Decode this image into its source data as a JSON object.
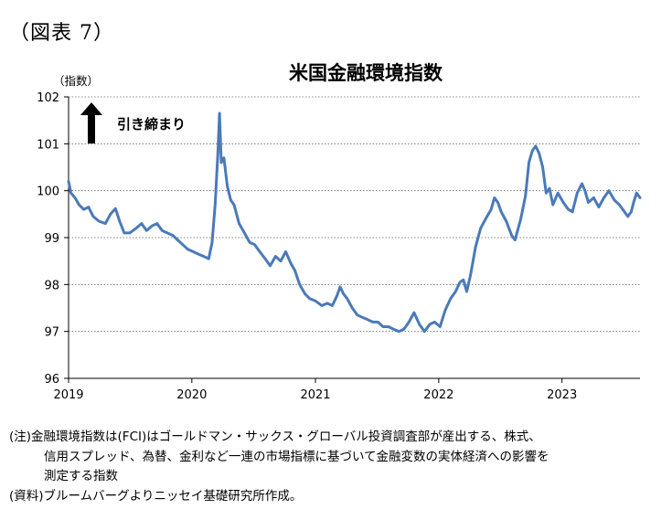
{
  "figure_label": "（図表 7）",
  "notes": {
    "note_line1": "(注)金融環境指数は(FCI)はゴールドマン・サックス・グローバル投資調査部が産出する、株式、",
    "note_line2": "信用スプレッド、為替、金利など一連の市場指標に基づいて金融変数の実体経済への影響を",
    "note_line3": "測定する指数",
    "source": "(資料)ブルームバーグよりニッセイ基礎研究所作成。"
  },
  "chart_data": {
    "type": "line",
    "title": "米国金融環境指数",
    "ylabel": "（指数）",
    "annotation": "引き締まり",
    "ylim": [
      96,
      102
    ],
    "yticks": [
      96,
      97,
      98,
      99,
      100,
      101,
      102
    ],
    "xlim": [
      "2019-01-01",
      "2023-08-20"
    ],
    "xticks": [
      {
        "value": "2019-01-01",
        "label": "2019"
      },
      {
        "value": "2020-01-01",
        "label": "2020"
      },
      {
        "value": "2021-01-01",
        "label": "2021"
      },
      {
        "value": "2022-01-01",
        "label": "2022"
      },
      {
        "value": "2023-01-01",
        "label": "2023"
      }
    ],
    "grid": true,
    "line_color": "#4a7ab8",
    "series": [
      {
        "values": [
          [
            "2019-01-01",
            100.2
          ],
          [
            "2019-01-08",
            99.95
          ],
          [
            "2019-01-20",
            99.85
          ],
          [
            "2019-02-01",
            99.7
          ],
          [
            "2019-02-15",
            99.6
          ],
          [
            "2019-03-01",
            99.65
          ],
          [
            "2019-03-15",
            99.45
          ],
          [
            "2019-04-01",
            99.35
          ],
          [
            "2019-04-20",
            99.3
          ],
          [
            "2019-05-05",
            99.5
          ],
          [
            "2019-05-20",
            99.62
          ],
          [
            "2019-06-01",
            99.35
          ],
          [
            "2019-06-15",
            99.1
          ],
          [
            "2019-07-01",
            99.1
          ],
          [
            "2019-07-20",
            99.2
          ],
          [
            "2019-08-05",
            99.3
          ],
          [
            "2019-08-20",
            99.15
          ],
          [
            "2019-09-05",
            99.25
          ],
          [
            "2019-09-20",
            99.3
          ],
          [
            "2019-10-05",
            99.15
          ],
          [
            "2019-10-20",
            99.1
          ],
          [
            "2019-11-05",
            99.05
          ],
          [
            "2019-11-20",
            98.95
          ],
          [
            "2019-12-05",
            98.85
          ],
          [
            "2019-12-20",
            98.75
          ],
          [
            "2020-01-05",
            98.7
          ],
          [
            "2020-01-20",
            98.65
          ],
          [
            "2020-02-05",
            98.6
          ],
          [
            "2020-02-20",
            98.55
          ],
          [
            "2020-03-01",
            98.9
          ],
          [
            "2020-03-10",
            99.7
          ],
          [
            "2020-03-18",
            100.8
          ],
          [
            "2020-03-23",
            101.65
          ],
          [
            "2020-03-28",
            100.6
          ],
          [
            "2020-04-05",
            100.7
          ],
          [
            "2020-04-15",
            100.1
          ],
          [
            "2020-04-25",
            99.8
          ],
          [
            "2020-05-05",
            99.7
          ],
          [
            "2020-05-20",
            99.3
          ],
          [
            "2020-06-05",
            99.1
          ],
          [
            "2020-06-20",
            98.9
          ],
          [
            "2020-07-05",
            98.85
          ],
          [
            "2020-07-20",
            98.7
          ],
          [
            "2020-08-05",
            98.55
          ],
          [
            "2020-08-20",
            98.4
          ],
          [
            "2020-09-05",
            98.6
          ],
          [
            "2020-09-20",
            98.5
          ],
          [
            "2020-10-05",
            98.7
          ],
          [
            "2020-10-20",
            98.45
          ],
          [
            "2020-11-01",
            98.3
          ],
          [
            "2020-11-15",
            98.0
          ],
          [
            "2020-12-01",
            97.8
          ],
          [
            "2020-12-15",
            97.7
          ],
          [
            "2021-01-01",
            97.65
          ],
          [
            "2021-01-20",
            97.55
          ],
          [
            "2021-02-05",
            97.6
          ],
          [
            "2021-02-20",
            97.55
          ],
          [
            "2021-03-05",
            97.75
          ],
          [
            "2021-03-15",
            97.95
          ],
          [
            "2021-03-25",
            97.8
          ],
          [
            "2021-04-05",
            97.7
          ],
          [
            "2021-04-20",
            97.5
          ],
          [
            "2021-05-05",
            97.35
          ],
          [
            "2021-05-20",
            97.3
          ],
          [
            "2021-06-05",
            97.25
          ],
          [
            "2021-06-20",
            97.2
          ],
          [
            "2021-07-05",
            97.2
          ],
          [
            "2021-07-20",
            97.1
          ],
          [
            "2021-08-05",
            97.1
          ],
          [
            "2021-08-20",
            97.05
          ],
          [
            "2021-09-05",
            97.0
          ],
          [
            "2021-09-20",
            97.05
          ],
          [
            "2021-10-05",
            97.2
          ],
          [
            "2021-10-20",
            97.4
          ],
          [
            "2021-11-05",
            97.15
          ],
          [
            "2021-11-20",
            97.0
          ],
          [
            "2021-12-05",
            97.15
          ],
          [
            "2021-12-20",
            97.2
          ],
          [
            "2022-01-05",
            97.1
          ],
          [
            "2022-01-20",
            97.45
          ],
          [
            "2022-02-05",
            97.7
          ],
          [
            "2022-02-20",
            97.85
          ],
          [
            "2022-03-05",
            98.05
          ],
          [
            "2022-03-15",
            98.1
          ],
          [
            "2022-03-25",
            97.85
          ],
          [
            "2022-04-05",
            98.2
          ],
          [
            "2022-04-20",
            98.8
          ],
          [
            "2022-05-05",
            99.2
          ],
          [
            "2022-05-20",
            99.4
          ],
          [
            "2022-06-05",
            99.6
          ],
          [
            "2022-06-15",
            99.85
          ],
          [
            "2022-06-25",
            99.75
          ],
          [
            "2022-07-05",
            99.55
          ],
          [
            "2022-07-20",
            99.35
          ],
          [
            "2022-08-05",
            99.05
          ],
          [
            "2022-08-15",
            98.95
          ],
          [
            "2022-09-01",
            99.4
          ],
          [
            "2022-09-15",
            99.9
          ],
          [
            "2022-09-25",
            100.6
          ],
          [
            "2022-10-05",
            100.85
          ],
          [
            "2022-10-15",
            100.95
          ],
          [
            "2022-10-25",
            100.8
          ],
          [
            "2022-11-05",
            100.5
          ],
          [
            "2022-11-15",
            99.95
          ],
          [
            "2022-11-25",
            100.05
          ],
          [
            "2022-12-05",
            99.7
          ],
          [
            "2022-12-20",
            99.95
          ],
          [
            "2023-01-05",
            99.75
          ],
          [
            "2023-01-20",
            99.6
          ],
          [
            "2023-02-01",
            99.55
          ],
          [
            "2023-02-15",
            99.95
          ],
          [
            "2023-03-01",
            100.15
          ],
          [
            "2023-03-10",
            100.0
          ],
          [
            "2023-03-20",
            99.75
          ],
          [
            "2023-04-05",
            99.85
          ],
          [
            "2023-04-20",
            99.65
          ],
          [
            "2023-05-05",
            99.85
          ],
          [
            "2023-05-20",
            100.0
          ],
          [
            "2023-06-05",
            99.8
          ],
          [
            "2023-06-20",
            99.7
          ],
          [
            "2023-07-05",
            99.55
          ],
          [
            "2023-07-15",
            99.45
          ],
          [
            "2023-07-25",
            99.55
          ],
          [
            "2023-08-01",
            99.75
          ],
          [
            "2023-08-10",
            99.95
          ],
          [
            "2023-08-20",
            99.85
          ]
        ]
      }
    ]
  }
}
